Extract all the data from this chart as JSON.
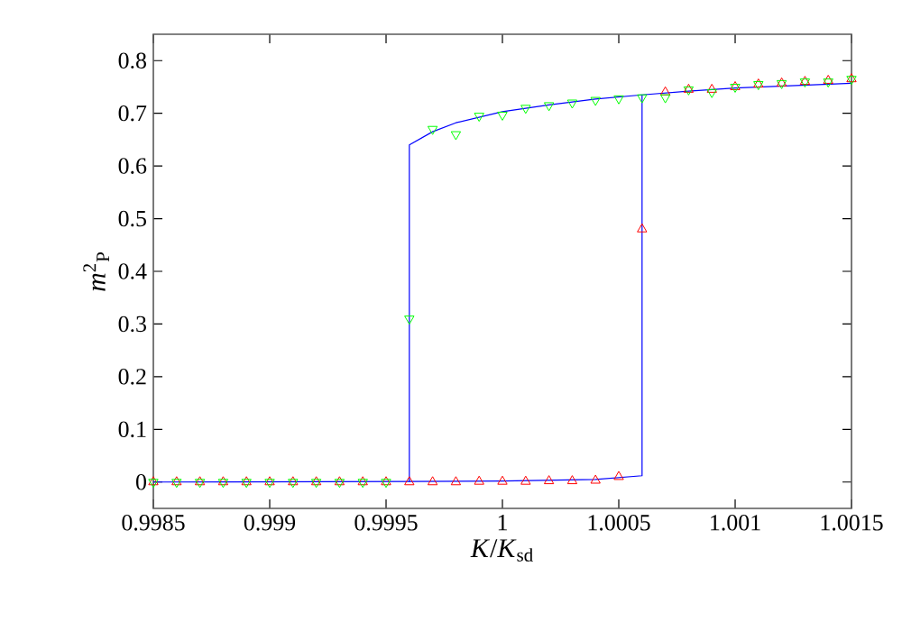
{
  "chart_data": {
    "type": "scatter",
    "xlabel": "*K*/*K*$_{sd}$",
    "ylabel": "*m*$^{2}$$_{P}$",
    "xlim": [
      0.9985,
      1.0015
    ],
    "ylim": [
      -0.05,
      0.85
    ],
    "xticks": [
      0.9985,
      0.999,
      0.9995,
      1,
      1.0005,
      1.001,
      1.0015
    ],
    "yticks": [
      0,
      0.1,
      0.2,
      0.3,
      0.4,
      0.5,
      0.6,
      0.7,
      0.8
    ],
    "grid": false,
    "series": [
      {
        "type": "line",
        "color": "#0000ff",
        "marker": "none",
        "x": [
          0.9985,
          0.9996,
          1.0,
          1.0004,
          1.0006,
          1.0006,
          1.0008,
          1.001,
          1.0015
        ],
        "values": [
          0,
          0.001,
          0.002,
          0.005,
          0.012,
          0.735,
          0.742,
          0.748,
          0.757
        ]
      },
      {
        "type": "line",
        "color": "#0000ff",
        "marker": "none",
        "x": [
          0.9996,
          0.9996,
          0.9997,
          0.9998,
          1.0,
          1.0002,
          1.0004,
          1.0006
        ],
        "values": [
          0,
          0.64,
          0.665,
          0.682,
          0.703,
          0.716,
          0.727,
          0.735
        ]
      },
      {
        "color": "#ff0000",
        "marker": "triangle",
        "x": [
          0.9985,
          0.9986,
          0.9987,
          0.9988,
          0.9989,
          0.999,
          0.9991,
          0.9992,
          0.9993,
          0.9994,
          0.9995,
          0.9996,
          0.9997,
          0.9998,
          0.9999,
          1.0,
          1.0001,
          1.0002,
          1.0003,
          1.0004,
          1.0005,
          1.0006,
          1.0007,
          1.0008,
          1.0009,
          1.001,
          1.0011,
          1.0012,
          1.0013,
          1.0014,
          1.0015
        ],
        "values": [
          0,
          0,
          0,
          0,
          0,
          0,
          0,
          0,
          0,
          0,
          0,
          0,
          0,
          0,
          0.001,
          0.001,
          0.001,
          0.002,
          0.002,
          0.003,
          0.01,
          0.48,
          0.74,
          0.745,
          0.745,
          0.75,
          0.755,
          0.757,
          0.76,
          0.762,
          0.765
        ]
      },
      {
        "color": "#00ff00",
        "marker": "triangle down",
        "x": [
          0.9985,
          0.9986,
          0.9987,
          0.9988,
          0.9989,
          0.999,
          0.9991,
          0.9992,
          0.9993,
          0.9994,
          0.9995,
          0.9996,
          0.9997,
          0.9998,
          0.9999,
          1.0,
          1.0001,
          1.0002,
          1.0003,
          1.0004,
          1.0005,
          1.0006,
          1.0007,
          1.0008,
          1.0009,
          1.001,
          1.0011,
          1.0012,
          1.0013,
          1.0014,
          1.0015
        ],
        "values": [
          0,
          0,
          0,
          0,
          0,
          0,
          0,
          0,
          0,
          0,
          0,
          0.31,
          0.67,
          0.66,
          0.695,
          0.697,
          0.71,
          0.715,
          0.72,
          0.725,
          0.728,
          0.73,
          0.73,
          0.745,
          0.74,
          0.75,
          0.755,
          0.757,
          0.76,
          0.76,
          0.765
        ]
      }
    ]
  }
}
